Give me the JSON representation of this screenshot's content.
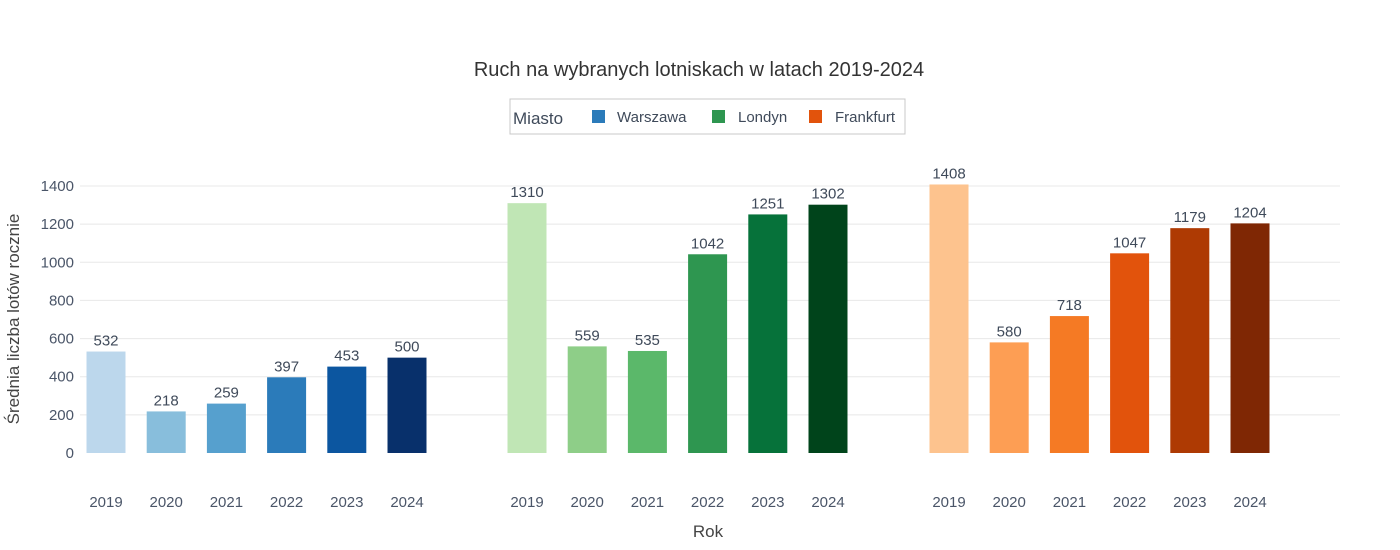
{
  "chart_data": {
    "type": "bar",
    "title": "Ruch na wybranych lotniskach w latach 2019-2024",
    "xlabel": "Rok",
    "ylabel": "Średnia liczba lotów rocznie",
    "ylim": [
      0,
      1400
    ],
    "yticks": [
      0,
      200,
      400,
      600,
      800,
      1000,
      1200,
      1400
    ],
    "grid": true,
    "legend": {
      "title": "Miasto",
      "position": "top-center",
      "entries": [
        {
          "name": "Warszawa",
          "color": "#2b7bba"
        },
        {
          "name": "Londyn",
          "color": "#2e9650"
        },
        {
          "name": "Frankfurt",
          "color": "#e2530c"
        }
      ]
    },
    "series": [
      {
        "name": "Warszawa",
        "categories": [
          "2019",
          "2020",
          "2021",
          "2022",
          "2023",
          "2024"
        ],
        "values": [
          532,
          218,
          259,
          397,
          453,
          500
        ],
        "colors": [
          "#bcd7ec",
          "#88bedc",
          "#56a0ce",
          "#2b7bba",
          "#0c56a0",
          "#08306b"
        ]
      },
      {
        "name": "Londyn",
        "categories": [
          "2019",
          "2020",
          "2021",
          "2022",
          "2023",
          "2024"
        ],
        "values": [
          1310,
          559,
          535,
          1042,
          1251,
          1302
        ],
        "colors": [
          "#c0e6b5",
          "#8ece88",
          "#5bb86a",
          "#2e9650",
          "#06723a",
          "#00441b"
        ]
      },
      {
        "name": "Frankfurt",
        "categories": [
          "2019",
          "2020",
          "2021",
          "2022",
          "2023",
          "2024"
        ],
        "values": [
          1408,
          580,
          718,
          1047,
          1179,
          1204
        ],
        "colors": [
          "#fdc38e",
          "#fd9e54",
          "#f57a24",
          "#e2530c",
          "#ae3a03",
          "#7f2704"
        ]
      }
    ]
  }
}
